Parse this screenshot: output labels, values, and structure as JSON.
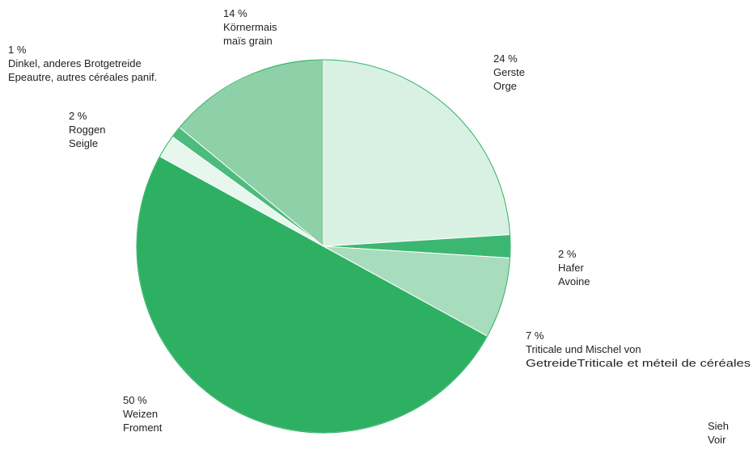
{
  "chart_data": {
    "type": "pie",
    "title": "",
    "slices": [
      {
        "pct_label": "24 %",
        "name_de": "Gerste",
        "name_fr": "Orge",
        "value": 24,
        "color": "#d8f1e3"
      },
      {
        "pct_label": "2 %",
        "name_de": "Hafer",
        "name_fr": "Avoine",
        "value": 2,
        "color": "#3cb772"
      },
      {
        "pct_label": "7 %",
        "name_de": "Triticale und Mischel von",
        "name_fr": "GetreideTriticale et méteil de céréales",
        "value": 7,
        "color": "#a7dcbc"
      },
      {
        "pct_label": "50 %",
        "name_de": "Weizen",
        "name_fr": "Froment",
        "value": 50,
        "color": "#2eb063"
      },
      {
        "pct_label": "2 %",
        "name_de": "Roggen",
        "name_fr": "Seigle",
        "value": 2,
        "color": "#e7f7ed"
      },
      {
        "pct_label": "1 %",
        "name_de": "Dinkel, anderes Brotgetreide",
        "name_fr": "Epeautre, autres céréales panif.",
        "value": 1,
        "color": "#4bbc7c"
      },
      {
        "pct_label": "14 %",
        "name_de": "Körnermais",
        "name_fr": "maïs grain",
        "value": 14,
        "color": "#8ed0a7"
      }
    ]
  },
  "footnote": {
    "line1": "Sieh",
    "line2": "Voir"
  }
}
